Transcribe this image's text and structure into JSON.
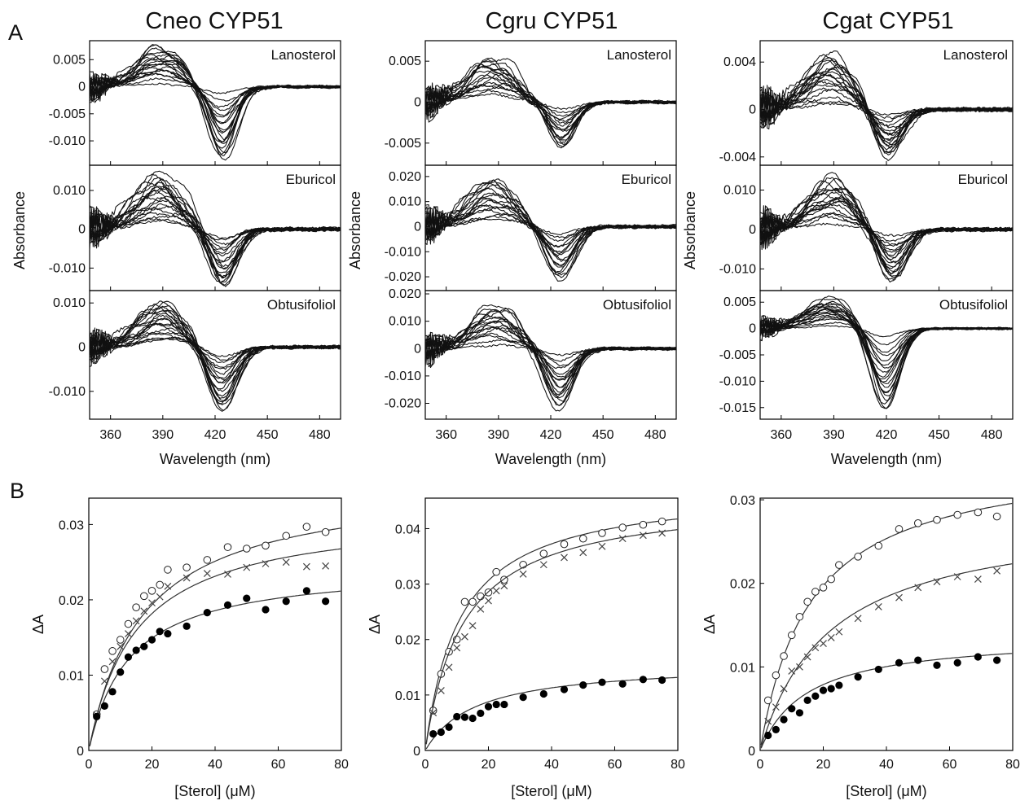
{
  "figure": {
    "panel_labels": [
      "A",
      "B"
    ],
    "column_titles": [
      "Cneo CYP51",
      "Cgru CYP51",
      "Cgat CYP51"
    ],
    "sterols": [
      "Lanosterol",
      "Eburicol",
      "Obtusifoliol"
    ],
    "spectra_xlabel": "Wavelength (nm)",
    "spectra_ylabel": "Absorbance",
    "binding_xlabel": "[Sterol] (μM)",
    "binding_ylabel": "ΔA"
  },
  "chart_data": [
    {
      "type": "line",
      "title": "Cneo CYP51",
      "xlabel": "Wavelength (nm)",
      "ylabel": "Absorbance",
      "xlim": [
        348,
        492
      ],
      "xticks": [
        360,
        390,
        420,
        450,
        480
      ],
      "panels": [
        {
          "name": "Lanosterol",
          "ylim": [
            -0.0145,
            0.0085
          ],
          "yticks": [
            0.005,
            0,
            -0.005,
            -0.01
          ],
          "yticklabels": [
            "0.005",
            "0",
            "-0.005",
            "-0.010"
          ],
          "peak_nm": 388,
          "trough_nm": 424,
          "peak_max": 0.0075,
          "trough_min": -0.0135,
          "curve_count": 20
        },
        {
          "name": "Eburicol",
          "ylim": [
            -0.0158,
            0.0165
          ],
          "yticks": [
            0.01,
            0,
            -0.01
          ],
          "yticklabels": [
            "0.010",
            "0",
            "-0.010"
          ],
          "peak_nm": 388,
          "trough_nm": 424,
          "peak_max": 0.0145,
          "trough_min": -0.0152,
          "curve_count": 20
        },
        {
          "name": "Obtusifoliol",
          "ylim": [
            -0.0163,
            0.0128
          ],
          "yticks": [
            0.01,
            0,
            -0.01
          ],
          "yticklabels": [
            "0.010",
            "0",
            "-0.010"
          ],
          "peak_nm": 390,
          "trough_nm": 424,
          "peak_max": 0.0108,
          "trough_min": -0.0148,
          "curve_count": 20
        }
      ]
    },
    {
      "type": "line",
      "title": "Cgru CYP51",
      "xlabel": "Wavelength (nm)",
      "ylabel": "Absorbance",
      "xlim": [
        348,
        492
      ],
      "xticks": [
        360,
        390,
        420,
        450,
        480
      ],
      "panels": [
        {
          "name": "Lanosterol",
          "ylim": [
            -0.0077,
            0.0075
          ],
          "yticks": [
            0.005,
            0,
            -0.005
          ],
          "yticklabels": [
            "0.005",
            "0",
            "-0.005"
          ],
          "peak_nm": 386,
          "trough_nm": 426,
          "peak_max": 0.0058,
          "trough_min": -0.0057,
          "curve_count": 18
        },
        {
          "name": "Eburicol",
          "ylim": [
            -0.0255,
            0.0245
          ],
          "yticks": [
            0.02,
            0.01,
            0,
            -0.01,
            -0.02
          ],
          "yticklabels": [
            "0.020",
            "0.010",
            "0",
            "-0.010",
            "-0.020"
          ],
          "peak_nm": 388,
          "trough_nm": 425,
          "peak_max": 0.0198,
          "trough_min": -0.0215,
          "curve_count": 18
        },
        {
          "name": "Obtusifoliol",
          "ylim": [
            -0.0258,
            0.0212
          ],
          "yticks": [
            0.02,
            0.01,
            0,
            -0.01,
            -0.02
          ],
          "yticklabels": [
            "0.020",
            "0.010",
            "0",
            "-0.010",
            "-0.020"
          ],
          "peak_nm": 388,
          "trough_nm": 425,
          "peak_max": 0.0165,
          "trough_min": -0.0222,
          "curve_count": 18
        }
      ]
    },
    {
      "type": "line",
      "title": "Cgat CYP51",
      "xlabel": "Wavelength (nm)",
      "ylabel": "Absorbance",
      "xlim": [
        348,
        492
      ],
      "xticks": [
        360,
        390,
        420,
        450,
        480
      ],
      "panels": [
        {
          "name": "Lanosterol",
          "ylim": [
            -0.0047,
            0.0058
          ],
          "yticks": [
            0.004,
            0,
            -0.004
          ],
          "yticklabels": [
            "0.004",
            "0",
            "-0.004"
          ],
          "peak_nm": 388,
          "trough_nm": 421,
          "peak_max": 0.0048,
          "trough_min": -0.0042,
          "curve_count": 20
        },
        {
          "name": "Eburicol",
          "ylim": [
            -0.0155,
            0.0163
          ],
          "yticks": [
            0.01,
            0,
            -0.01
          ],
          "yticklabels": [
            "0.010",
            "0",
            "-0.010"
          ],
          "peak_nm": 389,
          "trough_nm": 423,
          "peak_max": 0.0138,
          "trough_min": -0.0138,
          "curve_count": 20
        },
        {
          "name": "Obtusifoliol",
          "ylim": [
            -0.0172,
            0.0072
          ],
          "yticks": [
            0.005,
            0,
            -0.005,
            -0.01,
            -0.015
          ],
          "yticklabels": [
            "0.005",
            "0",
            "-0.005",
            "-0.010",
            "-0.015"
          ],
          "peak_nm": 388,
          "trough_nm": 419,
          "peak_max": 0.0058,
          "trough_min": -0.0158,
          "curve_count": 20
        }
      ]
    },
    {
      "type": "scatter",
      "title": "Cneo CYP51",
      "xlabel": "[Sterol] (μM)",
      "ylabel": "ΔA",
      "xlim": [
        0,
        80
      ],
      "ylim": [
        0,
        0.0335
      ],
      "xticks": [
        0,
        20,
        40,
        60,
        80
      ],
      "yticks": [
        0,
        0.01,
        0.02,
        0.03
      ],
      "yticklabels": [
        "0",
        "0.01",
        "0.02",
        "0.03"
      ],
      "series": [
        {
          "marker": "open-circle",
          "fit_amax": 0.0358,
          "fit_kd": 17.0,
          "x": [
            2.5,
            5,
            7.5,
            10,
            12.5,
            15,
            17.5,
            20,
            22.5,
            25,
            31,
            37.5,
            44,
            50,
            56,
            62.5,
            69,
            75
          ],
          "y": [
            0.0048,
            0.0108,
            0.0132,
            0.0147,
            0.0168,
            0.019,
            0.0205,
            0.0212,
            0.022,
            0.024,
            0.0243,
            0.0253,
            0.027,
            0.0268,
            0.0272,
            0.0285,
            0.0297,
            0.029
          ]
        },
        {
          "marker": "cross",
          "fit_amax": 0.0318,
          "fit_kd": 15.0,
          "x": [
            2.5,
            5,
            7.5,
            10,
            12.5,
            15,
            17.5,
            20,
            22.5,
            25,
            31,
            37.5,
            44,
            50,
            56,
            62.5,
            69,
            75
          ],
          "y": [
            0.0047,
            0.0092,
            0.0118,
            0.0138,
            0.0155,
            0.0172,
            0.0185,
            0.0196,
            0.0204,
            0.0218,
            0.0229,
            0.0235,
            0.0234,
            0.0243,
            0.0248,
            0.025,
            0.0244,
            0.0245
          ]
        },
        {
          "marker": "filled-circle",
          "fit_amax": 0.0246,
          "fit_kd": 13.0,
          "x": [
            2.5,
            5,
            7.5,
            10,
            12.5,
            15,
            17.5,
            20,
            22.5,
            25,
            31,
            37.5,
            44,
            50,
            56,
            62.5,
            69,
            75
          ],
          "y": [
            0.0045,
            0.0059,
            0.0078,
            0.0104,
            0.0124,
            0.0133,
            0.0138,
            0.0147,
            0.0158,
            0.0155,
            0.0165,
            0.0183,
            0.0193,
            0.0202,
            0.0187,
            0.0198,
            0.0212,
            0.0198
          ]
        }
      ]
    },
    {
      "type": "scatter",
      "title": "Cgru CYP51",
      "xlabel": "[Sterol] (μM)",
      "ylabel": "ΔA",
      "xlim": [
        0,
        80
      ],
      "ylim": [
        0,
        0.0455
      ],
      "xticks": [
        0,
        20,
        40,
        60,
        80
      ],
      "yticks": [
        0,
        0.01,
        0.02,
        0.03,
        0.04
      ],
      "yticklabels": [
        "0",
        "0.01",
        "0.02",
        "0.03",
        "0.04"
      ],
      "series": [
        {
          "marker": "open-circle",
          "fit_amax": 0.0475,
          "fit_kd": 11.0,
          "x": [
            2.5,
            5,
            7.5,
            10,
            12.5,
            15,
            17.5,
            20,
            22.5,
            25,
            31,
            37.5,
            44,
            50,
            56,
            62.5,
            69,
            75
          ],
          "y": [
            0.0072,
            0.0138,
            0.0178,
            0.02,
            0.0268,
            0.0268,
            0.0278,
            0.0285,
            0.0322,
            0.0308,
            0.0335,
            0.0355,
            0.0372,
            0.0382,
            0.0392,
            0.0402,
            0.0407,
            0.0413
          ]
        },
        {
          "marker": "cross",
          "fit_amax": 0.0458,
          "fit_kd": 12.0,
          "x": [
            2.5,
            5,
            7.5,
            10,
            12.5,
            15,
            17.5,
            20,
            22.5,
            25,
            31,
            37.5,
            44,
            50,
            56,
            62.5,
            69,
            75
          ],
          "y": [
            0.0068,
            0.0108,
            0.015,
            0.0185,
            0.0205,
            0.0225,
            0.0255,
            0.027,
            0.0288,
            0.0297,
            0.0318,
            0.0335,
            0.0348,
            0.0357,
            0.0368,
            0.0382,
            0.0388,
            0.0392
          ]
        },
        {
          "marker": "filled-circle",
          "fit_amax": 0.0158,
          "fit_kd": 16.0,
          "x": [
            2.5,
            5,
            7.5,
            10,
            12.5,
            15,
            17.5,
            20,
            22.5,
            25,
            31,
            37.5,
            44,
            50,
            56,
            62.5,
            69,
            75
          ],
          "y": [
            0.003,
            0.0033,
            0.0042,
            0.0061,
            0.006,
            0.0058,
            0.0067,
            0.0079,
            0.0083,
            0.0083,
            0.0096,
            0.0102,
            0.011,
            0.0118,
            0.0123,
            0.012,
            0.0128,
            0.0127
          ]
        }
      ]
    },
    {
      "type": "scatter",
      "title": "Cgat CYP51",
      "xlabel": "[Sterol] (μM)",
      "ylabel": "ΔA",
      "xlim": [
        0,
        80
      ],
      "ylim": [
        0,
        0.0302
      ],
      "xticks": [
        0,
        20,
        40,
        60,
        80
      ],
      "yticks": [
        0,
        0.01,
        0.02,
        0.03
      ],
      "yticklabels": [
        "0",
        "0.01",
        "0.02",
        "0.03"
      ],
      "series": [
        {
          "marker": "open-circle",
          "fit_amax": 0.0355,
          "fit_kd": 16.0,
          "x": [
            2.5,
            5,
            7.5,
            10,
            12.5,
            15,
            17.5,
            20,
            22.5,
            25,
            31,
            37.5,
            44,
            50,
            56,
            62.5,
            69,
            75
          ],
          "y": [
            0.006,
            0.009,
            0.0113,
            0.0138,
            0.016,
            0.0178,
            0.019,
            0.0195,
            0.0205,
            0.0222,
            0.0232,
            0.0245,
            0.0265,
            0.0272,
            0.0276,
            0.0282,
            0.0285,
            0.028
          ]
        },
        {
          "marker": "cross",
          "fit_amax": 0.0285,
          "fit_kd": 22.0,
          "x": [
            2.5,
            5,
            7.5,
            10,
            12.5,
            15,
            17.5,
            20,
            22.5,
            25,
            31,
            37.5,
            44,
            50,
            56,
            62.5,
            69,
            75
          ],
          "y": [
            0.0035,
            0.0052,
            0.0074,
            0.0095,
            0.01,
            0.0112,
            0.0123,
            0.0128,
            0.0135,
            0.0142,
            0.0158,
            0.0172,
            0.0183,
            0.0195,
            0.0202,
            0.0208,
            0.0205,
            0.0215
          ]
        },
        {
          "marker": "filled-circle",
          "fit_amax": 0.0138,
          "fit_kd": 15.0,
          "x": [
            2.5,
            5,
            7.5,
            10,
            12.5,
            15,
            17.5,
            20,
            22.5,
            25,
            31,
            37.5,
            44,
            50,
            56,
            62.5,
            69,
            75
          ],
          "y": [
            0.0018,
            0.0025,
            0.0037,
            0.005,
            0.0045,
            0.006,
            0.0065,
            0.0072,
            0.0074,
            0.0078,
            0.0088,
            0.0097,
            0.0105,
            0.0108,
            0.0102,
            0.0105,
            0.0112,
            0.0108
          ]
        }
      ]
    }
  ]
}
